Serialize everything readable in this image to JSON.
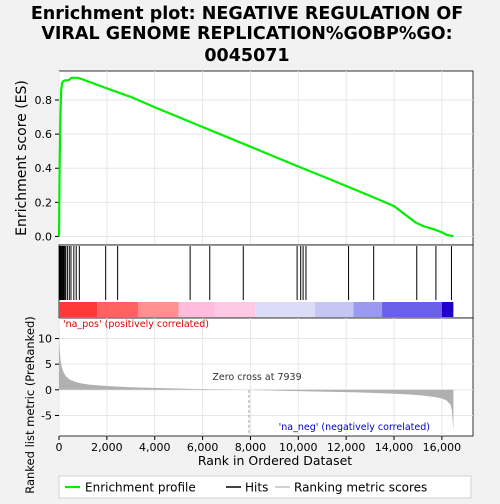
{
  "title_lines": [
    "Enrichment plot: NEGATIVE REGULATION OF",
    "VIRAL GENOME REPLICATION%GOBP%GO:",
    "0045071"
  ],
  "colors": {
    "es_line": "#00ee00",
    "hit_line": "#000000",
    "rank_fill": "#b0b0b0",
    "pos_label": "#dd0000",
    "neg_label": "#0000cc",
    "heat_red": "#ff3333",
    "heat_blue": "#2200cc"
  },
  "chart_data": {
    "type": "line",
    "x_axis": {
      "label": "Rank in Ordered Dataset",
      "ticks": [
        0,
        2000,
        4000,
        6000,
        8000,
        10000,
        12000,
        14000,
        16000
      ],
      "tick_labels": [
        "0",
        "2,000",
        "4,000",
        "6,000",
        "8,000",
        "10,000",
        "12,000",
        "14,000",
        "16,000"
      ],
      "range": [
        0,
        17300
      ]
    },
    "es_panel": {
      "ylabel": "Enrichment score (ES)",
      "ylim": [
        -0.05,
        0.97
      ],
      "yticks": [
        0.0,
        0.2,
        0.4,
        0.6,
        0.8
      ],
      "ytick_labels": [
        "0.0",
        "0.2",
        "0.4",
        "0.6",
        "0.8"
      ],
      "series_name": "Enrichment profile",
      "x": [
        0,
        30,
        60,
        90,
        130,
        180,
        250,
        330,
        420,
        520,
        650,
        800,
        1000,
        2000,
        3000,
        4000,
        5000,
        6000,
        7000,
        8000,
        9000,
        10000,
        11000,
        12000,
        13000,
        14000,
        14900,
        15200,
        15700,
        16000,
        16200,
        16400,
        16480
      ],
      "y": [
        0.0,
        0.45,
        0.7,
        0.86,
        0.9,
        0.91,
        0.915,
        0.915,
        0.918,
        0.93,
        0.93,
        0.93,
        0.92,
        0.868,
        0.818,
        0.758,
        0.7,
        0.642,
        0.584,
        0.526,
        0.468,
        0.41,
        0.354,
        0.296,
        0.238,
        0.178,
        0.082,
        0.062,
        0.04,
        0.024,
        0.01,
        0.004,
        0.0
      ]
    },
    "hits": [
      20,
      50,
      80,
      110,
      140,
      170,
      200,
      240,
      280,
      350,
      430,
      500,
      620,
      720,
      850,
      1950,
      2450,
      5480,
      6300,
      7700,
      9950,
      10100,
      10200,
      10320,
      12100,
      13150,
      14950,
      15750,
      16400
    ],
    "heatmap": {
      "segments": [
        {
          "x0": 0,
          "x1": 1600,
          "color": "#ff3838"
        },
        {
          "x0": 1600,
          "x1": 3300,
          "color": "#ff6060"
        },
        {
          "x0": 3300,
          "x1": 5000,
          "color": "#ff9090"
        },
        {
          "x0": 5000,
          "x1": 6500,
          "color": "#ffbcdc"
        },
        {
          "x0": 6500,
          "x1": 8200,
          "color": "#ffc8e4"
        },
        {
          "x0": 8200,
          "x1": 10700,
          "color": "#dcdcf8"
        },
        {
          "x0": 10700,
          "x1": 12300,
          "color": "#c6c6f4"
        },
        {
          "x0": 12300,
          "x1": 13500,
          "color": "#9a9af0"
        },
        {
          "x0": 13500,
          "x1": 16000,
          "color": "#6a60e8"
        },
        {
          "x0": 16000,
          "x1": 16480,
          "color": "#2200cc"
        }
      ]
    },
    "rank_panel": {
      "ylabel": "Ranked list metric (PreRanked)",
      "ylim": [
        -9,
        14
      ],
      "yticks": [
        -5,
        0,
        5,
        10
      ],
      "ytick_labels": [
        "-5",
        "0",
        "5",
        "10"
      ],
      "series_name": "Ranking metric scores",
      "x": [
        0,
        20,
        60,
        120,
        200,
        300,
        450,
        650,
        900,
        1300,
        2000,
        3000,
        4500,
        6000,
        7939,
        9500,
        11000,
        12500,
        13500,
        14500,
        15200,
        15700,
        16000,
        16200,
        16350,
        16420,
        16460,
        16480
      ],
      "y": [
        11.5,
        8.5,
        6.0,
        4.3,
        3.3,
        2.6,
        2.0,
        1.6,
        1.3,
        1.0,
        0.75,
        0.5,
        0.3,
        0.15,
        0.0,
        -0.2,
        -0.35,
        -0.5,
        -0.65,
        -0.85,
        -1.1,
        -1.4,
        -1.7,
        -2.1,
        -2.8,
        -4.0,
        -6.5,
        -8.0
      ],
      "zero_cross_label": "Zero cross at 7939",
      "zero_cross_x": 7939,
      "pos_label": "'na_pos' (positively correlated)",
      "neg_label": "'na_neg' (negatively correlated)"
    },
    "legend": [
      "Enrichment profile",
      "Hits",
      "Ranking metric scores"
    ],
    "legend_position": "bottom"
  }
}
